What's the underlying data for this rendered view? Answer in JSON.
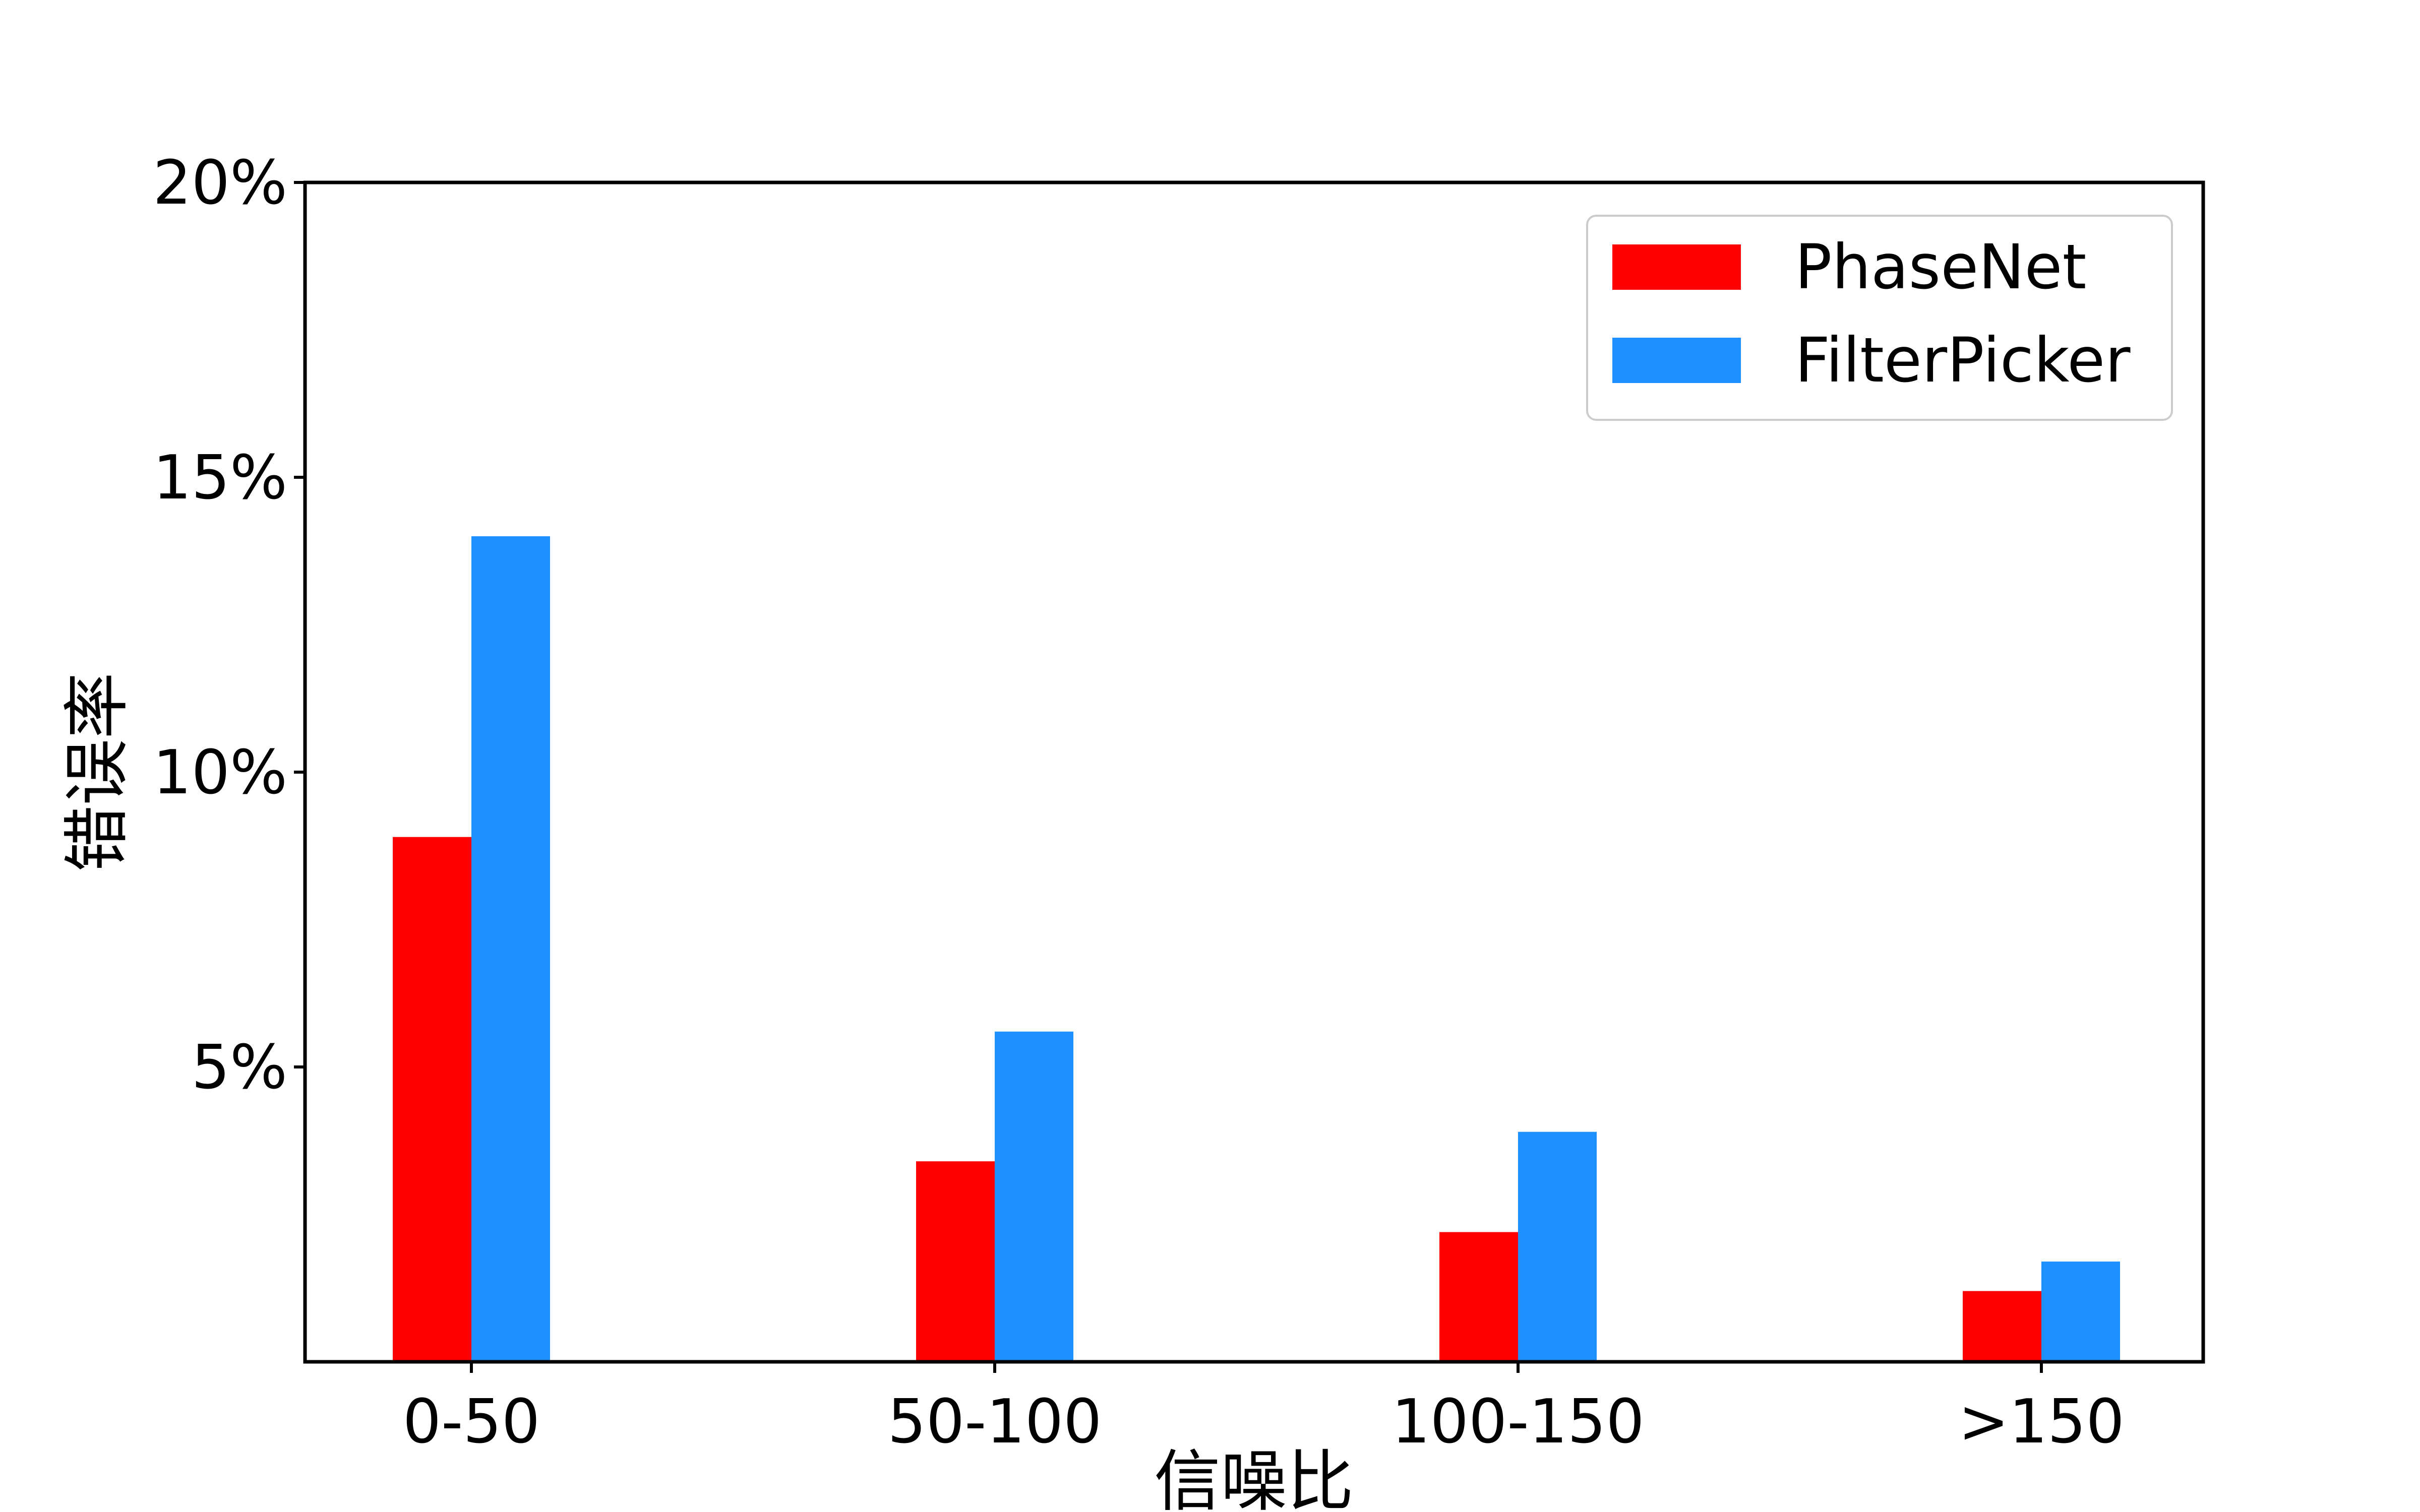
{
  "chart_data": {
    "type": "bar",
    "title": "",
    "xlabel": "信噪比",
    "ylabel": "错误率",
    "categories": [
      "0-50",
      "50-100",
      "100-150",
      ">150"
    ],
    "yticks": [
      {
        "value": 5,
        "label": "5%"
      },
      {
        "value": 10,
        "label": "10%"
      },
      {
        "value": 15,
        "label": "15%"
      },
      {
        "value": 20,
        "label": "20%"
      }
    ],
    "ylim": [
      0,
      20
    ],
    "grid": false,
    "legend_position": "top-right",
    "series": [
      {
        "name": "PhaseNet",
        "color": "#ff0000",
        "values": [
          8.9,
          3.4,
          2.2,
          1.2
        ]
      },
      {
        "name": "FilterPicker",
        "color": "#1e90ff",
        "values": [
          14.0,
          5.6,
          3.9,
          1.7
        ]
      }
    ]
  }
}
